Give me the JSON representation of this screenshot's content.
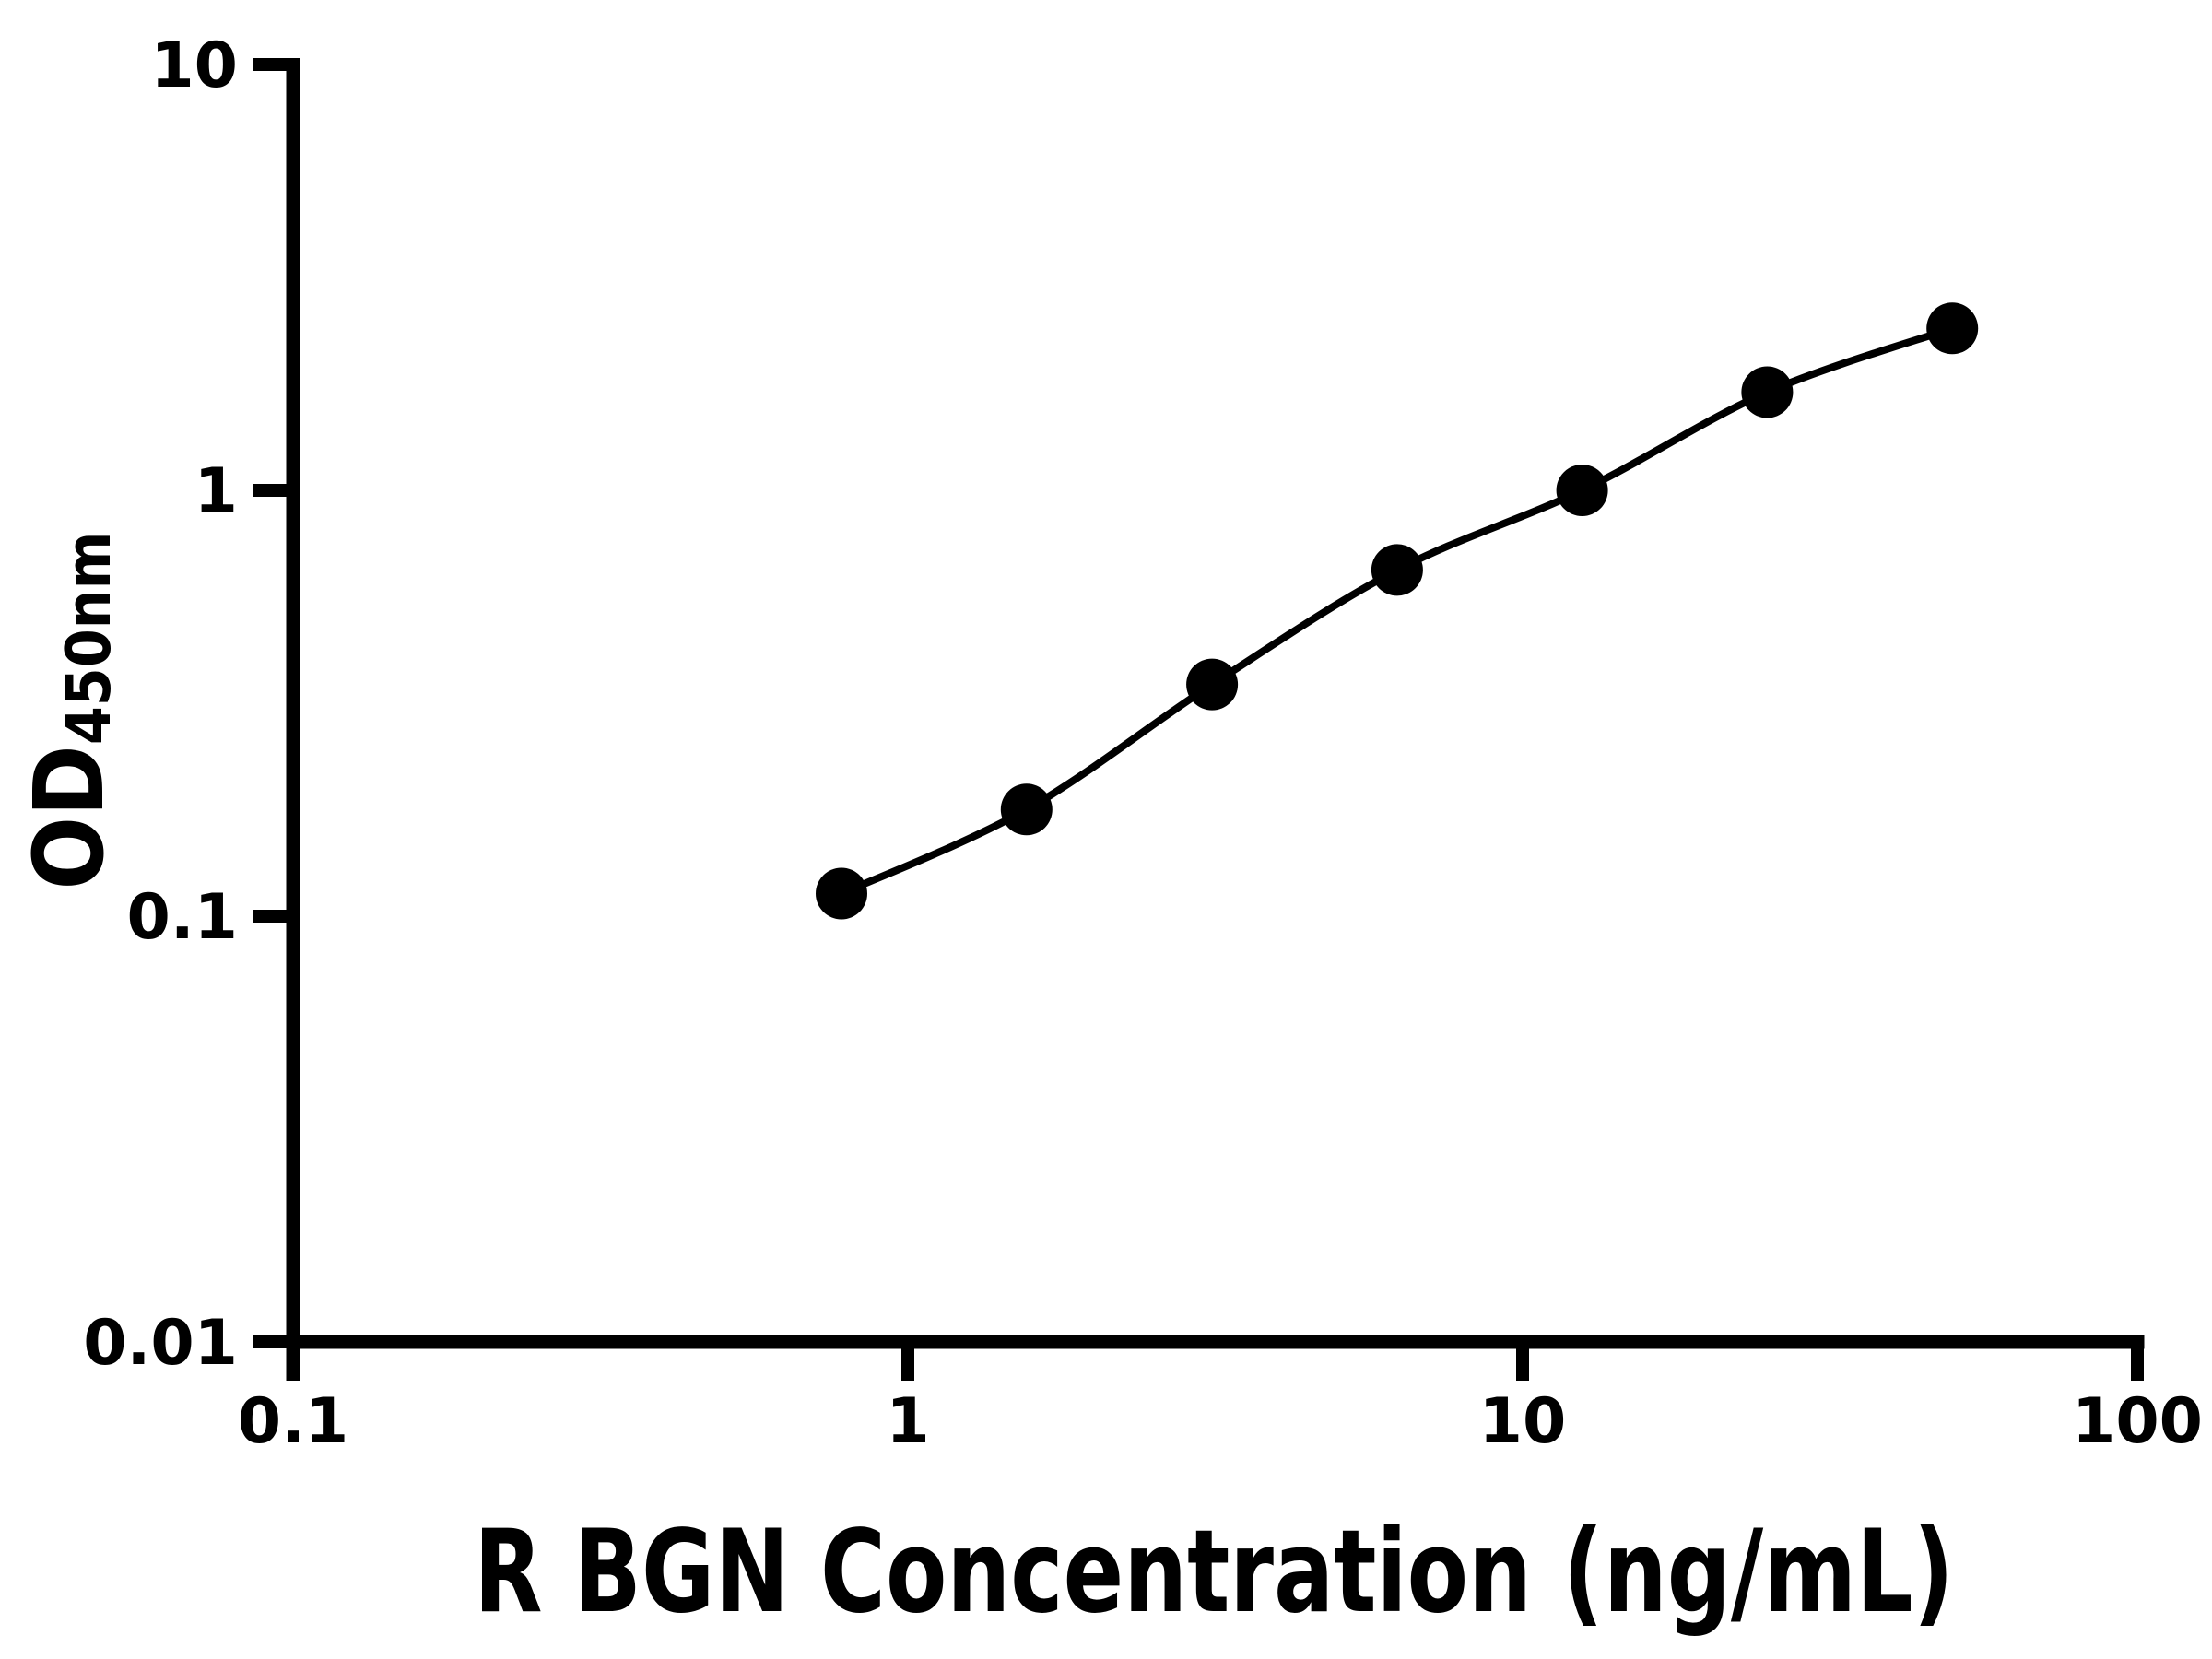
{
  "chart_data": {
    "type": "scatter",
    "x": [
      0.78,
      1.56,
      3.125,
      6.25,
      12.5,
      25,
      50
    ],
    "y": [
      0.113,
      0.178,
      0.35,
      0.65,
      1.0,
      1.7,
      2.4
    ],
    "xlabel": "R BGN Concentration (ng/mL)",
    "ylabel_main": "OD",
    "ylabel_sub": "450nm",
    "x_scale": "log",
    "y_scale": "log",
    "xlim": [
      0.1,
      100
    ],
    "ylim": [
      0.01,
      10
    ],
    "x_ticks": {
      "values": [
        0.1,
        1,
        10,
        100
      ],
      "labels": [
        "0.1",
        "1",
        "10",
        "100"
      ]
    },
    "y_ticks": {
      "values": [
        0.01,
        0.1,
        1,
        10
      ],
      "labels": [
        "0.01",
        "0.1",
        "1",
        "10"
      ]
    },
    "grid": false,
    "legend": false,
    "marker": {
      "shape": "circle",
      "color": "#000000"
    },
    "line_color": "#000000",
    "axis_color": "#000000",
    "background": "#ffffff"
  }
}
